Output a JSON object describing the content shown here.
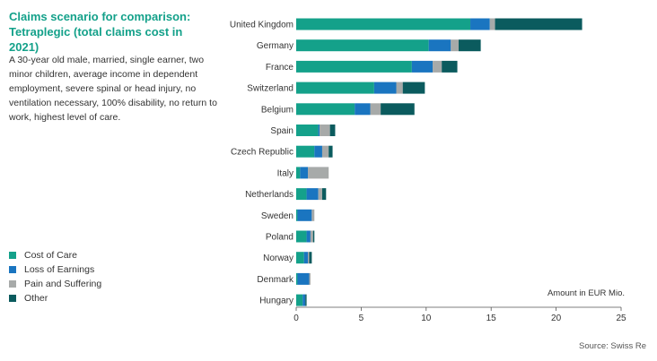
{
  "title_line1": "Claims scenario for comparison:",
  "title_line2": "Tetraplegic (total claims cost in 2021)",
  "description": "A 30-year old male, married, single earner, two minor children, average income in dependent employment, severe spinal or head injury, no ventilation necessary, 100% disability, no return to work, highest level of care.",
  "source": "Source: Swiss Re",
  "colors": {
    "cost_of_care": "#14a18a",
    "loss_of_earnings": "#1a75c0",
    "pain_and_suffering": "#a7aaa9",
    "other": "#0b5b5e"
  },
  "legend": [
    {
      "label": "Cost of Care",
      "color": "#14a18a"
    },
    {
      "label": "Loss of Earnings",
      "color": "#1a75c0"
    },
    {
      "label": "Pain and Suffering",
      "color": "#a7aaa9"
    },
    {
      "label": "Other",
      "color": "#0b5b5e"
    }
  ],
  "chart_data": {
    "type": "bar",
    "orientation": "horizontal",
    "stacked": true,
    "unit_label": "Amount in EUR Mio.",
    "xlim": [
      0,
      25
    ],
    "xticks": [
      0,
      5,
      10,
      15,
      20,
      25
    ],
    "categories": [
      "United Kingdom",
      "Germany",
      "France",
      "Switzerland",
      "Belgium",
      "Spain",
      "Czech Republic",
      "Italy",
      "Netherlands",
      "Sweden",
      "Poland",
      "Norway",
      "Denmark",
      "Hungary"
    ],
    "series": [
      {
        "name": "Cost of Care",
        "color": "#14a18a",
        "values": [
          13.4,
          10.2,
          8.9,
          6.0,
          4.5,
          1.7,
          1.4,
          0.3,
          0.8,
          0.1,
          0.8,
          0.6,
          0.1,
          0.5
        ]
      },
      {
        "name": "Loss of Earnings",
        "color": "#1a75c0",
        "values": [
          1.5,
          1.7,
          1.6,
          1.7,
          1.2,
          0.1,
          0.6,
          0.6,
          0.9,
          1.1,
          0.3,
          0.3,
          0.9,
          0.2
        ]
      },
      {
        "name": "Pain and Suffering",
        "color": "#a7aaa9",
        "values": [
          0.4,
          0.6,
          0.7,
          0.5,
          0.8,
          0.8,
          0.5,
          1.6,
          0.3,
          0.2,
          0.2,
          0.1,
          0.1,
          0.0
        ]
      },
      {
        "name": "Other",
        "color": "#0b5b5e",
        "values": [
          6.7,
          1.7,
          1.2,
          1.7,
          2.6,
          0.4,
          0.3,
          0.0,
          0.3,
          0.0,
          0.1,
          0.2,
          0.0,
          0.1
        ]
      }
    ]
  }
}
